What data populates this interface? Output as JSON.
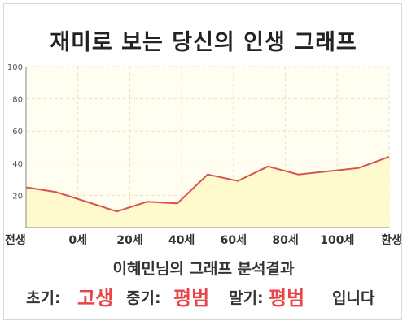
{
  "title": "재미로 보는 당신의 인생 그래프",
  "chart_data": {
    "type": "area",
    "x_tick_labels": [
      "전생",
      "0세",
      "20세",
      "40세",
      "60세",
      "80세",
      "100세",
      "환생"
    ],
    "x": [
      -10,
      0,
      20,
      30,
      40,
      50,
      60,
      70,
      80,
      90,
      100,
      110
    ],
    "y": [
      25,
      22,
      10,
      16,
      15,
      33,
      29,
      38,
      33,
      35,
      37,
      44
    ],
    "ylim": [
      0,
      100
    ],
    "y_ticks": [
      20,
      40,
      60,
      80,
      100
    ],
    "grid": true,
    "line_color": "#d9534f",
    "fill_color": "#fffacd",
    "background_color": "#fffef0",
    "grid_color": "#ebe3bd"
  },
  "caption": "이혜민님의 그래프 분석결과",
  "result": {
    "early_label": "초기:",
    "early_value": "고생",
    "middle_label": "중기:",
    "middle_value": "평범",
    "late_label": "말기:",
    "late_value": "평범",
    "suffix": "입니다"
  },
  "colors": {
    "highlight": "#e8444a"
  }
}
